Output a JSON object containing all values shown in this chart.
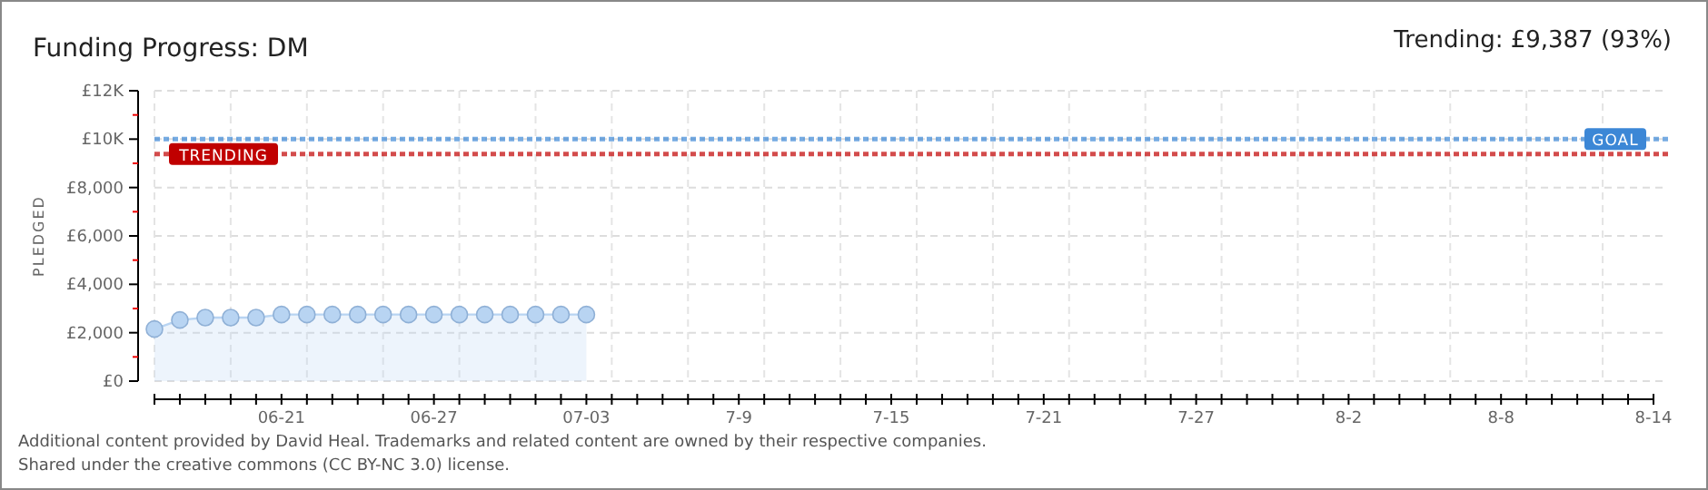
{
  "chart_data": {
    "type": "area",
    "title": "Funding Progress: DM",
    "subtitle": "Trending: £9,387 (93%)",
    "ylabel": "PLEDGED",
    "categories": [
      null,
      null,
      null,
      null,
      null,
      "06-21",
      null,
      null,
      null,
      null,
      null,
      "06-27",
      null,
      null,
      null,
      null,
      null,
      "07-03",
      null,
      null,
      null,
      null,
      null,
      "7-9",
      null,
      null,
      null,
      null,
      null,
      "7-15",
      null,
      null,
      null,
      null,
      null,
      "7-21",
      null,
      null,
      null,
      null,
      null,
      "7-27",
      null,
      null,
      null,
      null,
      null,
      "8-2",
      null,
      null,
      null,
      null,
      null,
      "8-8",
      null,
      null,
      null,
      null,
      null,
      "8-14"
    ],
    "series": [
      {
        "color": "#b8d4f2",
        "values": [
          2150,
          2525,
          2625,
          2625,
          2625,
          2750,
          2750,
          2750,
          2750,
          2750,
          2750,
          2750,
          2750,
          2750,
          2750,
          2750,
          2750,
          2750,
          null,
          null,
          null,
          null,
          null,
          null,
          null,
          null,
          null,
          null,
          null,
          null,
          null,
          null,
          null,
          null,
          null,
          null,
          null,
          null,
          null,
          null,
          null,
          null,
          null,
          null,
          null,
          null,
          null,
          null,
          null,
          null,
          null,
          null,
          null,
          null,
          null,
          null,
          null,
          null,
          null,
          null
        ]
      }
    ],
    "ylim": [
      0,
      12000
    ],
    "yticks": [
      {
        "value": 0,
        "label": "£0"
      },
      {
        "value": 1000,
        "label": null
      },
      {
        "value": 2000,
        "label": "£2,000"
      },
      {
        "value": 3000,
        "label": null
      },
      {
        "value": 4000,
        "label": "£4,000"
      },
      {
        "value": 5000,
        "label": null
      },
      {
        "value": 6000,
        "label": "£6,000"
      },
      {
        "value": 7000,
        "label": null
      },
      {
        "value": 8000,
        "label": "£8,000"
      },
      {
        "value": 9000,
        "label": null
      },
      {
        "value": 10000,
        "label": "£10K"
      },
      {
        "value": 11000,
        "label": null
      },
      {
        "value": 12000,
        "label": "£12K"
      }
    ],
    "grid": true,
    "marker": "circle",
    "ref_lines": [
      {
        "axis": "y",
        "value": 10000,
        "label": "GOAL",
        "color": "#3c87d6",
        "line_style": "dotted"
      },
      {
        "axis": "y",
        "value": 9387,
        "label": "TRENDING",
        "color": "#c00000",
        "line_style": "dotted"
      }
    ],
    "annotations": [
      "Additional content provided by David Heal. Trademarks and related content are owned by their respective companies.",
      "Shared under the creative commons (CC BY-NC 3.0) license."
    ]
  }
}
